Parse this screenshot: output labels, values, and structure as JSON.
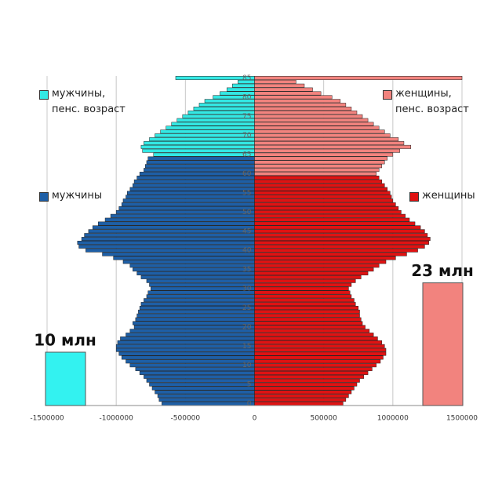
{
  "chart_data": {
    "type": "population_pyramid",
    "y": [
      0,
      1,
      2,
      3,
      4,
      5,
      6,
      7,
      8,
      9,
      10,
      11,
      12,
      13,
      14,
      15,
      16,
      17,
      18,
      19,
      20,
      21,
      22,
      23,
      24,
      25,
      26,
      27,
      28,
      29,
      30,
      31,
      32,
      33,
      34,
      35,
      36,
      37,
      38,
      39,
      40,
      41,
      42,
      43,
      44,
      45,
      46,
      47,
      48,
      49,
      50,
      51,
      52,
      53,
      54,
      55,
      56,
      57,
      58,
      59,
      60,
      61,
      62,
      63,
      64,
      65,
      66,
      67,
      68,
      69,
      70,
      71,
      72,
      73,
      74,
      75,
      76,
      77,
      78,
      79,
      80,
      81,
      82,
      83,
      84,
      85
    ],
    "xlim": [
      -1500000,
      1500000
    ],
    "xticks": [
      -1500000,
      -1000000,
      -500000,
      0,
      500000,
      1000000,
      1500000
    ],
    "ylim": [
      -0.5,
      85.5
    ],
    "yticks": [
      0,
      5,
      10,
      15,
      20,
      25,
      30,
      35,
      40,
      45,
      50,
      55,
      60,
      65,
      70,
      75,
      80,
      85
    ],
    "grid": true,
    "series": [
      {
        "name": "мужчины",
        "color": "#1e5fa6",
        "values": [
          -670000,
          -690000,
          -700000,
          -720000,
          -740000,
          -760000,
          -780000,
          -800000,
          -830000,
          -860000,
          -900000,
          -930000,
          -960000,
          -980000,
          -1000000,
          -1000000,
          -990000,
          -970000,
          -930000,
          -900000,
          -870000,
          -880000,
          -860000,
          -850000,
          -840000,
          -830000,
          -820000,
          -800000,
          -780000,
          -770000,
          -750000,
          -760000,
          -780000,
          -820000,
          -850000,
          -880000,
          -900000,
          -950000,
          -1020000,
          -1100000,
          -1220000,
          -1270000,
          -1280000,
          -1250000,
          -1230000,
          -1200000,
          -1170000,
          -1130000,
          -1080000,
          -1040000,
          -1000000,
          -980000,
          -960000,
          -950000,
          -930000,
          -920000,
          -900000,
          -880000,
          -870000,
          -850000,
          -830000,
          -800000,
          -790000,
          -780000,
          -770000,
          null,
          null,
          null,
          null,
          null,
          null,
          null,
          null,
          null,
          null,
          null,
          null,
          null,
          null,
          null,
          null,
          null,
          null,
          null,
          null,
          null
        ]
      },
      {
        "name": "мужчины, пенс. возраст",
        "color": "#33e8e4",
        "values": [
          null,
          null,
          null,
          null,
          null,
          null,
          null,
          null,
          null,
          null,
          null,
          null,
          null,
          null,
          null,
          null,
          null,
          null,
          null,
          null,
          null,
          null,
          null,
          null,
          null,
          null,
          null,
          null,
          null,
          null,
          null,
          null,
          null,
          null,
          null,
          null,
          null,
          null,
          null,
          null,
          null,
          null,
          null,
          null,
          null,
          null,
          null,
          null,
          null,
          null,
          null,
          null,
          null,
          null,
          null,
          null,
          null,
          null,
          null,
          null,
          null,
          null,
          null,
          null,
          null,
          -730000,
          -810000,
          -820000,
          -800000,
          -760000,
          -720000,
          -680000,
          -640000,
          -600000,
          -560000,
          -520000,
          -480000,
          -440000,
          -400000,
          -360000,
          -300000,
          -250000,
          -200000,
          -160000,
          -120000,
          -570000
        ]
      },
      {
        "name": "женщины",
        "color": "#e01212",
        "values": [
          640000,
          660000,
          680000,
          700000,
          720000,
          740000,
          760000,
          790000,
          820000,
          850000,
          880000,
          910000,
          930000,
          950000,
          950000,
          940000,
          920000,
          890000,
          860000,
          830000,
          800000,
          780000,
          770000,
          760000,
          760000,
          750000,
          730000,
          720000,
          700000,
          690000,
          680000,
          700000,
          730000,
          770000,
          820000,
          860000,
          900000,
          950000,
          1020000,
          1100000,
          1180000,
          1230000,
          1260000,
          1270000,
          1250000,
          1230000,
          1200000,
          1160000,
          1120000,
          1090000,
          1060000,
          1040000,
          1020000,
          1000000,
          990000,
          980000,
          960000,
          940000,
          920000,
          900000,
          null,
          null,
          null,
          null,
          null,
          null,
          null,
          null,
          null,
          null,
          null,
          null,
          null,
          null,
          null,
          null,
          null,
          null,
          null,
          null,
          null,
          null,
          null,
          null,
          null,
          null
        ]
      },
      {
        "name": "женщины, пенс. возраст",
        "color": "#f2837e",
        "values": [
          null,
          null,
          null,
          null,
          null,
          null,
          null,
          null,
          null,
          null,
          null,
          null,
          null,
          null,
          null,
          null,
          null,
          null,
          null,
          null,
          null,
          null,
          null,
          null,
          null,
          null,
          null,
          null,
          null,
          null,
          null,
          null,
          null,
          null,
          null,
          null,
          null,
          null,
          null,
          null,
          null,
          null,
          null,
          null,
          null,
          null,
          null,
          null,
          null,
          null,
          null,
          null,
          null,
          null,
          null,
          null,
          null,
          null,
          null,
          null,
          880000,
          900000,
          920000,
          940000,
          960000,
          1000000,
          1050000,
          1130000,
          1080000,
          1040000,
          980000,
          940000,
          900000,
          860000,
          820000,
          780000,
          740000,
          700000,
          660000,
          620000,
          560000,
          480000,
          420000,
          360000,
          300000,
          1500000
        ]
      }
    ],
    "summary": {
      "values": [
        10,
        23
      ],
      "value_labels": [
        "10 млн",
        "23 млн"
      ],
      "colors": [
        "#33f2f0",
        "#f2837e"
      ]
    }
  }
}
